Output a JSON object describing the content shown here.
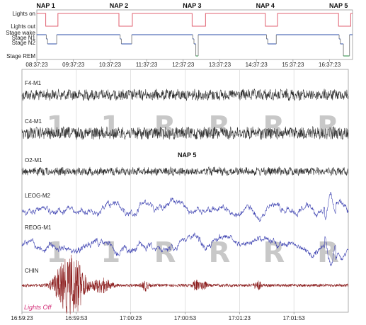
{
  "colors": {
    "lights_line": "#e06070",
    "stage_line": "#2b4ea8",
    "rem_line": "#1d8a3a",
    "wake_gray": "#888888",
    "eeg": "#2a2a2a",
    "eog": "#3a3fb0",
    "chin": "#8b1c1c",
    "nap5": "#1a6fb0",
    "lights_off": "#d4327a"
  },
  "chart_data": [
    {
      "type": "line",
      "title": "",
      "naps": [
        {
          "label": "NAP 1",
          "time": "08:52"
        },
        {
          "label": "NAP 2",
          "time": "10:52"
        },
        {
          "label": "NAP 3",
          "time": "12:52"
        },
        {
          "label": "NAP 4",
          "time": "14:52"
        },
        {
          "label": "NAP 5",
          "time": "16:52",
          "highlight": true
        }
      ],
      "y_labels": [
        "Lights on",
        "Lights out",
        "Stage wake",
        "Stage N1",
        "Stage N2",
        "Stage REM"
      ],
      "x_ticks": [
        "08:37:23",
        "09:37:23",
        "10:37:23",
        "11:37:23",
        "12:37:23",
        "13:37:23",
        "14:37:23",
        "15:37:23",
        "16:37:23"
      ],
      "x_range": [
        "08:37:23",
        "17:15:00"
      ],
      "series": [
        {
          "name": "Lights",
          "points": [
            [
              "08:37",
              "on"
            ],
            [
              "08:52",
              "on"
            ],
            [
              "08:52",
              "out"
            ],
            [
              "09:12",
              "out"
            ],
            [
              "09:12",
              "on"
            ],
            [
              "10:52",
              "on"
            ],
            [
              "10:52",
              "out"
            ],
            [
              "11:14",
              "out"
            ],
            [
              "11:14",
              "on"
            ],
            [
              "12:52",
              "on"
            ],
            [
              "12:52",
              "out"
            ],
            [
              "13:14",
              "out"
            ],
            [
              "13:14",
              "on"
            ],
            [
              "14:52",
              "on"
            ],
            [
              "14:52",
              "out"
            ],
            [
              "15:12",
              "out"
            ],
            [
              "15:12",
              "on"
            ],
            [
              "16:52",
              "on"
            ],
            [
              "16:52",
              "out"
            ],
            [
              "17:12",
              "out"
            ],
            [
              "17:12",
              "on"
            ],
            [
              "17:15",
              "on"
            ]
          ]
        },
        {
          "name": "Stage",
          "points": [
            [
              "08:37",
              "wake"
            ],
            [
              "08:53",
              "wake"
            ],
            [
              "08:53",
              "N1"
            ],
            [
              "08:55",
              "N1"
            ],
            [
              "08:55",
              "N2"
            ],
            [
              "09:10",
              "N2"
            ],
            [
              "09:10",
              "wake"
            ],
            [
              "10:54",
              "wake"
            ],
            [
              "10:54",
              "N1"
            ],
            [
              "10:56",
              "N1"
            ],
            [
              "10:56",
              "N2"
            ],
            [
              "11:13",
              "N2"
            ],
            [
              "11:13",
              "wake"
            ],
            [
              "12:53",
              "wake"
            ],
            [
              "12:53",
              "N1"
            ],
            [
              "12:55",
              "N1"
            ],
            [
              "12:55",
              "N2"
            ],
            [
              "12:58",
              "N2"
            ],
            [
              "12:58",
              "REM"
            ],
            [
              "13:02",
              "REM"
            ],
            [
              "13:02",
              "wake"
            ],
            [
              "14:54",
              "wake"
            ],
            [
              "14:54",
              "N1"
            ],
            [
              "14:56",
              "N1"
            ],
            [
              "14:56",
              "N2"
            ],
            [
              "15:10",
              "N2"
            ],
            [
              "15:10",
              "wake"
            ],
            [
              "16:53",
              "wake"
            ],
            [
              "16:53",
              "N1"
            ],
            [
              "16:55",
              "N1"
            ],
            [
              "16:55",
              "N2"
            ],
            [
              "17:00",
              "N2"
            ],
            [
              "17:00",
              "REM"
            ],
            [
              "17:10",
              "REM"
            ],
            [
              "17:10",
              "wake"
            ],
            [
              "17:15",
              "wake"
            ]
          ]
        }
      ]
    },
    {
      "type": "line",
      "title": "",
      "annotation": "NAP 5",
      "channels": [
        "F4-M1",
        "C4-M1",
        "O2-M1",
        "LEOG-M2",
        "REOG-M1",
        "CHIN"
      ],
      "x_ticks": [
        "16:59:23",
        "16:59:53",
        "17:00:23",
        "17:00:53",
        "17:01:23",
        "17:01:53"
      ],
      "epoch_scores_row1": [
        "1",
        "1",
        "R",
        "R",
        "R",
        "R"
      ],
      "epoch_scores_row2": [
        "1",
        "1",
        "R",
        "R",
        "R",
        "R"
      ],
      "lights_off_label": "Lights Off",
      "chin_bursts_seconds": [
        22,
        27,
        31,
        44,
        68,
        96,
        100,
        130
      ],
      "duration_seconds": 180
    }
  ]
}
